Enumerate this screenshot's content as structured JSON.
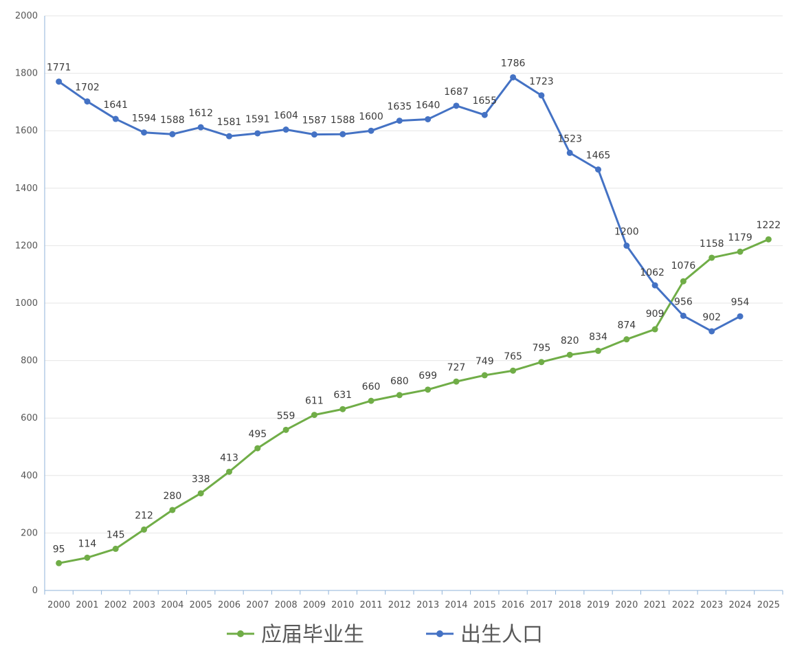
{
  "chart_data": {
    "type": "line",
    "title": "",
    "xlabel": "",
    "ylabel": "",
    "ylim": [
      0,
      2000
    ],
    "yticks": [
      0,
      200,
      400,
      600,
      800,
      1000,
      1200,
      1400,
      1600,
      1800,
      2000
    ],
    "grid": true,
    "legend_position": "bottom",
    "categories": [
      "2000",
      "2001",
      "2002",
      "2003",
      "2004",
      "2005",
      "2006",
      "2007",
      "2008",
      "2009",
      "2010",
      "2011",
      "2012",
      "2013",
      "2014",
      "2015",
      "2016",
      "2017",
      "2018",
      "2019",
      "2020",
      "2021",
      "2022",
      "2023",
      "2024",
      "2025"
    ],
    "series": [
      {
        "name": "应届毕业生",
        "color": "#70ad47",
        "values": [
          95,
          114,
          145,
          212,
          280,
          338,
          413,
          495,
          559,
          611,
          631,
          660,
          680,
          699,
          727,
          749,
          765,
          795,
          820,
          834,
          874,
          909,
          1076,
          1158,
          1179,
          1222
        ]
      },
      {
        "name": "出生人口",
        "color": "#4472c4",
        "values": [
          1771,
          1702,
          1641,
          1594,
          1588,
          1612,
          1581,
          1591,
          1604,
          1587,
          1588,
          1600,
          1635,
          1640,
          1687,
          1655,
          1786,
          1723,
          1523,
          1465,
          1200,
          1062,
          956,
          902,
          954,
          null
        ]
      }
    ]
  }
}
